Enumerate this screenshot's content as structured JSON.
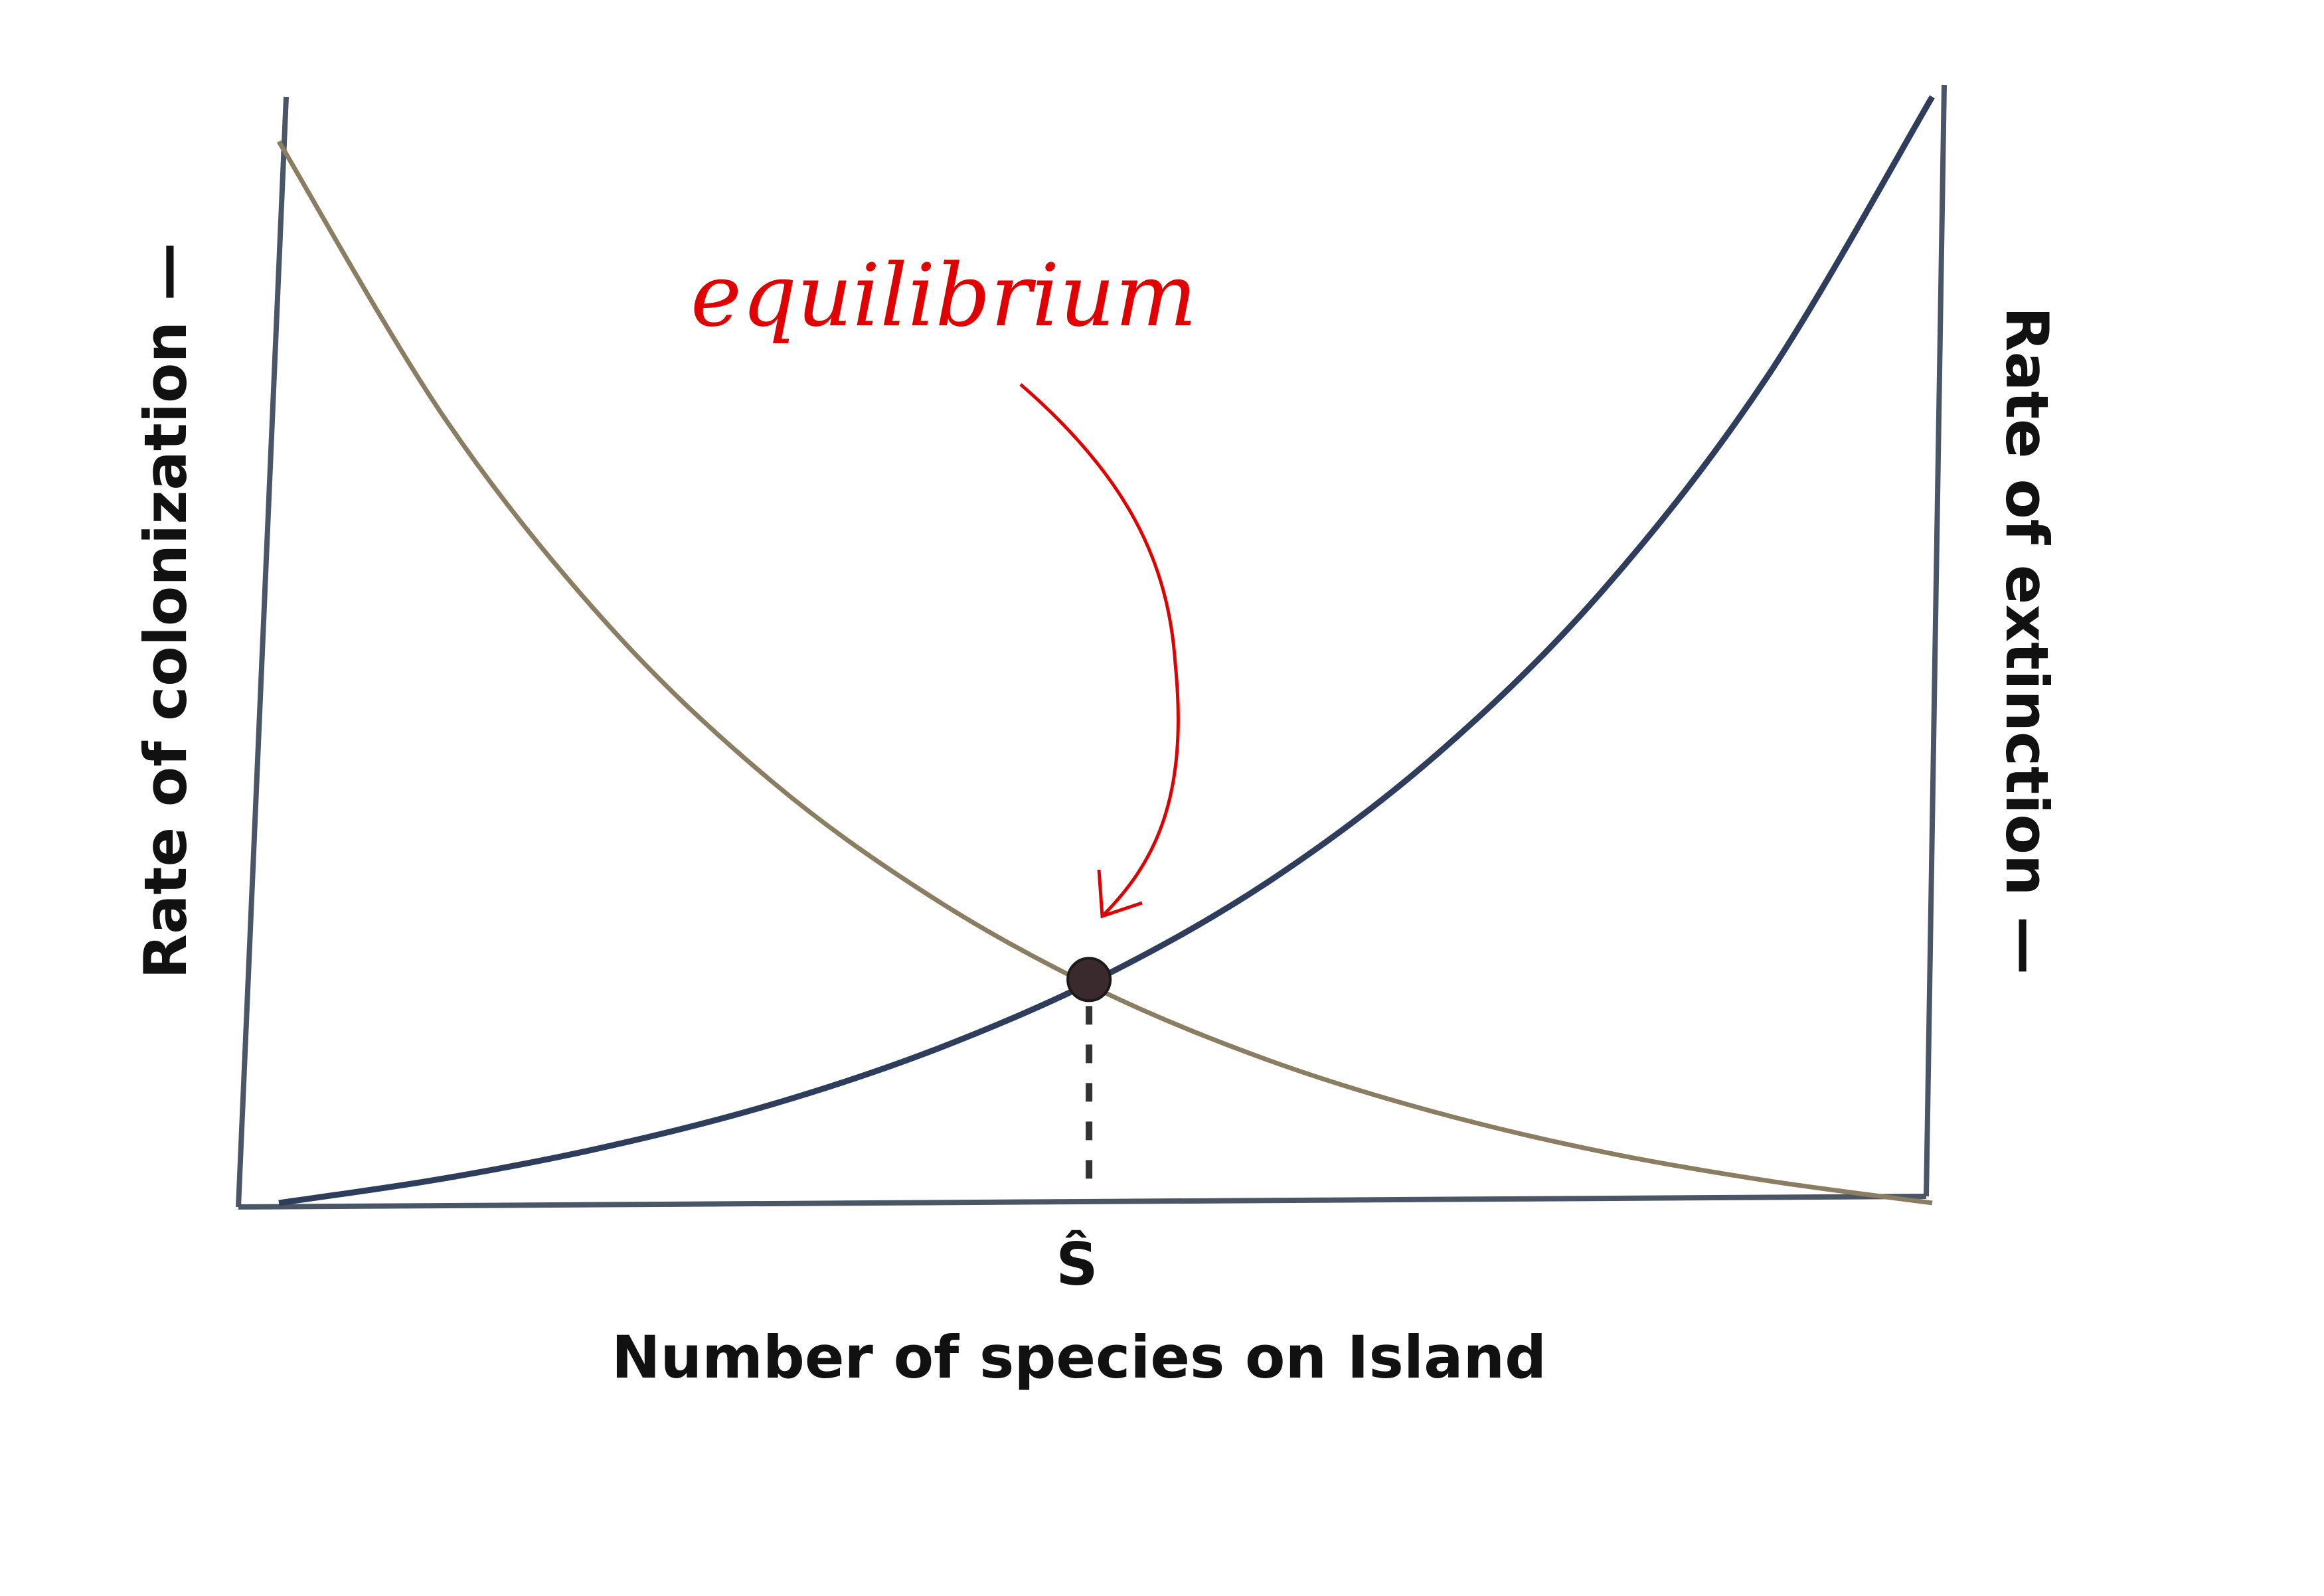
{
  "chart_data": {
    "type": "line",
    "title": "",
    "xlabel": "Number of species on Island",
    "ylabel_left": "Rate of colonization —",
    "ylabel_right": "Rate of extinction —",
    "x_tick_label": "Ŝ",
    "xlim": [
      0,
      1
    ],
    "ylim": [
      0,
      1
    ],
    "grid": false,
    "x": [
      0,
      0.1,
      0.2,
      0.3,
      0.4,
      0.5,
      0.6,
      0.7,
      0.8,
      0.9,
      1.0
    ],
    "series": [
      {
        "values": [
          0.95,
          0.703,
          0.516,
          0.375,
          0.269,
          0.188,
          0.127,
          0.081,
          0.046,
          0.02,
          0
        ],
        "color": "#8a7d62"
      },
      {
        "values": [
          0,
          0.022,
          0.051,
          0.089,
          0.139,
          0.204,
          0.289,
          0.401,
          0.547,
          0.739,
          0.99
        ],
        "color": "#2f3d5c"
      }
    ],
    "equilibrium_point": {
      "x": 0.49,
      "y": 0.2
    },
    "annotation": {
      "text": "equilibrium",
      "color": "#e00000"
    }
  }
}
